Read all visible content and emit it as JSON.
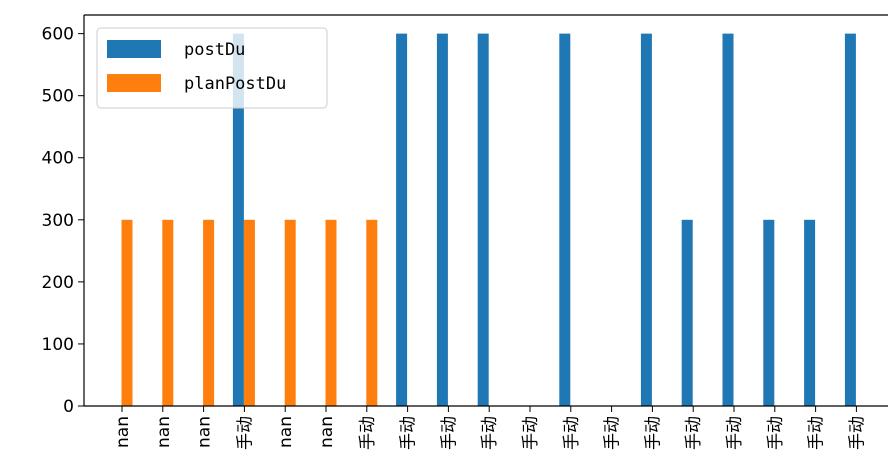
{
  "chart_data": {
    "type": "bar",
    "categories": [
      "nan",
      "nan",
      "nan",
      "手动",
      "nan",
      "nan",
      "手动",
      "手动",
      "手动",
      "手动",
      "手动",
      "手动",
      "手动",
      "手动",
      "手动",
      "手动",
      "手动",
      "手动",
      "手动",
      "手动"
    ],
    "series": [
      {
        "name": "postDu",
        "color": "#1f77b4",
        "values": [
          0,
          0,
          0,
          600,
          0,
          0,
          0,
          600,
          600,
          600,
          0,
          600,
          0,
          600,
          300,
          600,
          300,
          300,
          600,
          0
        ]
      },
      {
        "name": "planPostDu",
        "color": "#ff7f0e",
        "values": [
          300,
          300,
          300,
          300,
          300,
          300,
          300,
          0,
          0,
          0,
          0,
          0,
          0,
          0,
          0,
          0,
          0,
          0,
          0,
          0
        ]
      }
    ],
    "ylim": [
      0,
      630
    ],
    "yticks": [
      0,
      100,
      200,
      300,
      400,
      500,
      600
    ],
    "ytick_labels": [
      "0",
      "100",
      "200",
      "300",
      "400",
      "500",
      "600"
    ],
    "legend": {
      "position": "top-left",
      "entries": [
        "postDu",
        "planPostDu"
      ]
    },
    "title": "",
    "xlabel": "",
    "ylabel": "",
    "grid": false
  }
}
